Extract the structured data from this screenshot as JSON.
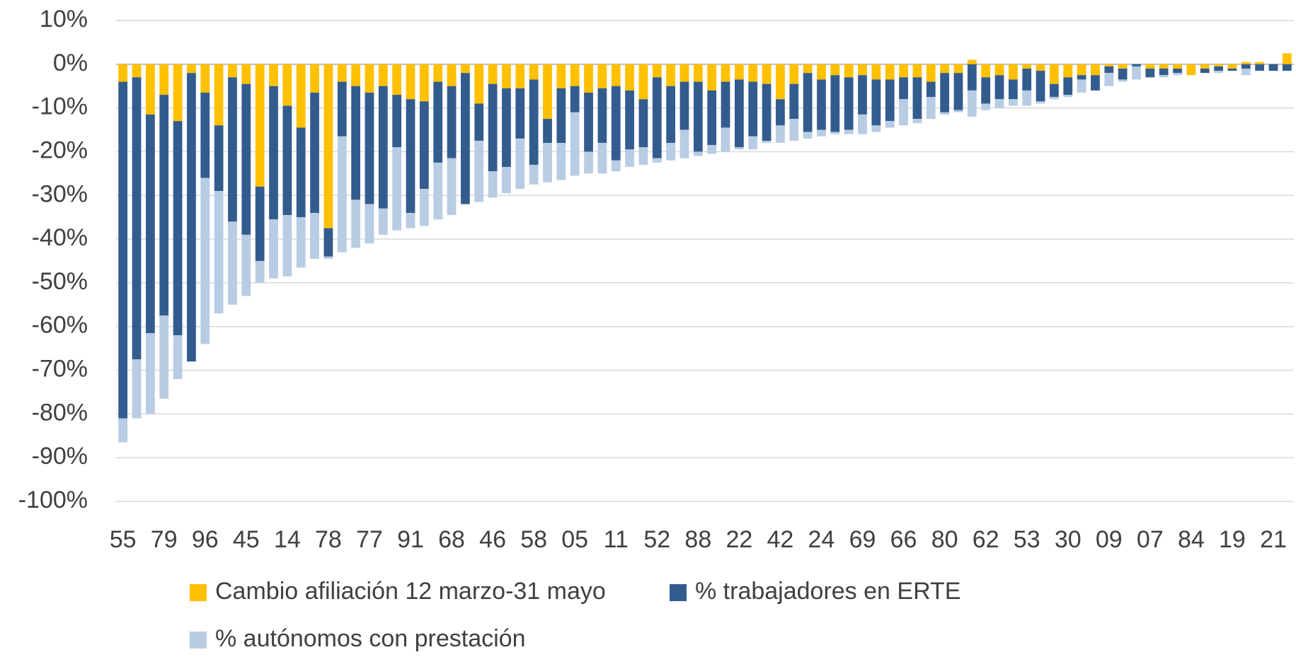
{
  "chart_data": {
    "type": "stacked_bar",
    "categories": [
      "55",
      null,
      null,
      "79",
      null,
      null,
      "96",
      null,
      null,
      "45",
      null,
      null,
      "14",
      null,
      null,
      "78",
      null,
      null,
      "77",
      null,
      null,
      "91",
      null,
      null,
      "68",
      null,
      null,
      "46",
      null,
      null,
      "58",
      null,
      null,
      "05",
      null,
      null,
      "11",
      null,
      null,
      "52",
      null,
      null,
      "88",
      null,
      null,
      "22",
      null,
      null,
      "42",
      null,
      null,
      "24",
      null,
      null,
      "69",
      null,
      null,
      "66",
      null,
      null,
      "80",
      null,
      null,
      "62",
      null,
      null,
      "53",
      null,
      null,
      "30",
      null,
      null,
      "09",
      null,
      null,
      "07",
      null,
      null,
      "84",
      null,
      null,
      "19",
      null,
      null,
      "21",
      null
    ],
    "series": [
      {
        "name": "Cambio afiliación 12 marzo-31 mayo",
        "color": "#ffc000",
        "values": [
          -4,
          -3,
          -11.5,
          -7,
          -13,
          -2,
          -6.5,
          -14,
          -3,
          -4.5,
          -28,
          -5,
          -9.5,
          -14.5,
          -6.5,
          -37.5,
          -4,
          -5,
          -6.5,
          -5,
          -7,
          -8,
          -8.5,
          -4,
          -5,
          -2,
          -9,
          -4.5,
          -5.5,
          -5.5,
          -3.5,
          -12.5,
          -5.5,
          -5,
          -6.5,
          -5.5,
          -5,
          -6,
          -8,
          -3,
          -5,
          -4,
          -4,
          -6,
          -4,
          -3.5,
          -4,
          -4.5,
          -8,
          -4.5,
          -2,
          -3.5,
          -2.5,
          -3,
          -2.5,
          -3.5,
          -3.5,
          -3,
          -3,
          -4,
          -2,
          -2,
          1,
          -3,
          -2.5,
          -3.5,
          -1,
          -1.5,
          -4.5,
          -3,
          -2.5,
          -2.5,
          -0.5,
          -1,
          0,
          -1,
          -1,
          -1,
          -2.5,
          -1,
          -0.5,
          -1,
          0.5,
          0.5,
          0,
          2.5
        ]
      },
      {
        "name": "% trabajadores en ERTE",
        "color": "#335c8e",
        "values": [
          -77,
          -64.5,
          -50,
          -50.5,
          -49,
          -66,
          -19.5,
          -15,
          -33,
          -34.5,
          -17,
          -30.5,
          -25,
          -20.5,
          -27.5,
          -6.5,
          -12.5,
          -26,
          -25.5,
          -28,
          -12,
          -26,
          -20,
          -18.5,
          -16.5,
          -30,
          -8.5,
          -20,
          -18,
          -11.5,
          -19.5,
          -5.5,
          -12.5,
          -6,
          -13.5,
          -12.5,
          -17,
          -13.5,
          -11,
          -18.5,
          -13,
          -11,
          -16,
          -12.5,
          -10.5,
          -15.5,
          -12.5,
          -13,
          -6,
          -8,
          -13.5,
          -11.5,
          -13,
          -12,
          -9,
          -10.5,
          -9.5,
          -5,
          -9.5,
          -3.5,
          -9,
          -8.5,
          -6,
          -6,
          -5.5,
          -4.5,
          -5,
          -7,
          -3,
          -4,
          -1,
          -3.5,
          -1.5,
          -2.5,
          -0.5,
          -2,
          -1.5,
          -1,
          0,
          -1,
          -1,
          -0.5,
          -1,
          -1.5,
          -1.5,
          -1.5
        ]
      },
      {
        "name": "% autónomos con prestación",
        "color": "#b8cce4",
        "values": [
          -5.5,
          -13.5,
          -18.5,
          -19,
          -10,
          0,
          -38,
          -28,
          -19,
          -14,
          -5,
          -13.5,
          -14,
          -11.5,
          -10.5,
          -0.5,
          -26.5,
          -11,
          -9,
          -6,
          -19,
          -3.5,
          -8.5,
          -13,
          -13,
          0,
          -14,
          -6,
          -6,
          -11.5,
          -4.5,
          -9,
          -8.5,
          -14.5,
          -5,
          -7,
          -2.5,
          -4,
          -4,
          -1,
          -4,
          -6.5,
          -1,
          -2,
          -5.5,
          -0.5,
          -3,
          -0.5,
          -4,
          -5,
          -1.5,
          -1.5,
          -0.5,
          -1,
          -4.5,
          -1.5,
          -1.5,
          -6,
          -1,
          -5,
          -0.5,
          -0.5,
          -6,
          -1.5,
          -2,
          -1.5,
          -3.5,
          -0.5,
          -0.5,
          -0.5,
          -3,
          0,
          -3,
          -0.5,
          -3,
          0,
          -0.5,
          -0.5,
          0,
          0,
          -0.5,
          0,
          -1.5,
          0,
          0,
          0
        ]
      }
    ],
    "ylim": [
      -100,
      10
    ],
    "yticks": [
      {
        "value": 10,
        "label": "10%"
      },
      {
        "value": 0,
        "label": "0%"
      },
      {
        "value": -10,
        "label": "-10%"
      },
      {
        "value": -20,
        "label": "-20%"
      },
      {
        "value": -30,
        "label": "-30%"
      },
      {
        "value": -40,
        "label": "-40%"
      },
      {
        "value": -50,
        "label": "-50%"
      },
      {
        "value": -60,
        "label": "-60%"
      },
      {
        "value": -70,
        "label": "-70%"
      },
      {
        "value": -80,
        "label": "-80%"
      },
      {
        "value": -90,
        "label": "-90%"
      },
      {
        "value": -100,
        "label": "-100%"
      }
    ],
    "grid": true,
    "legend": "bottom"
  }
}
